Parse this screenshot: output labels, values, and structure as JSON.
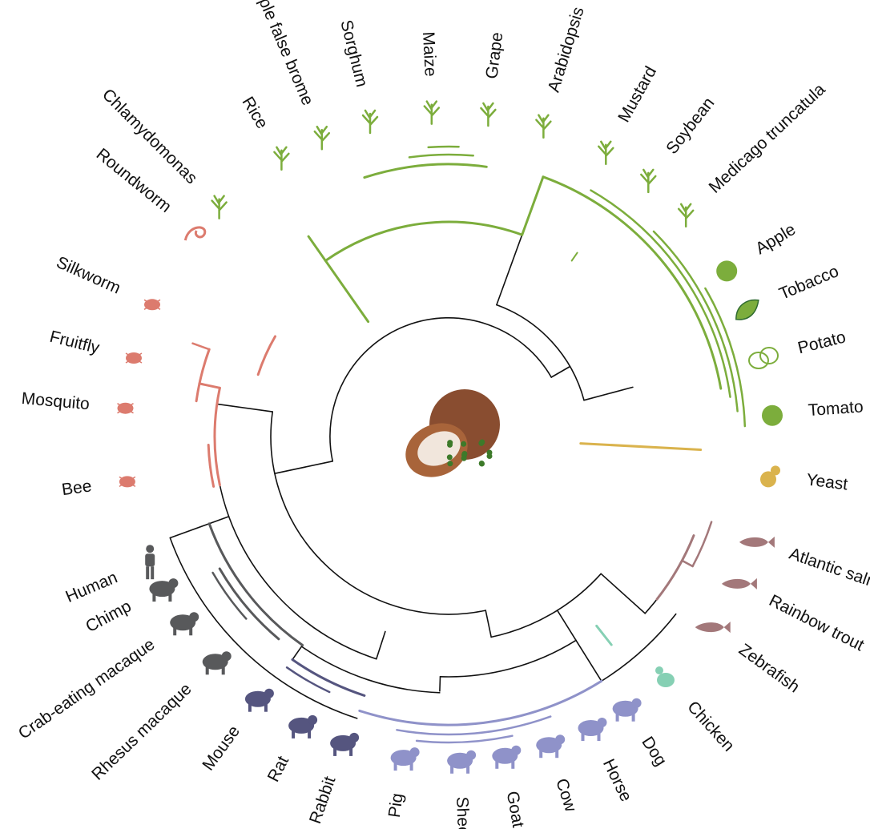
{
  "colors": {
    "plants": "#7cad3c",
    "insects": "#dc7b6e",
    "primates": "#58595b",
    "rodents": "#55557f",
    "ungulates": "#8f92c9",
    "chicken": "#86d0b4",
    "fish": "#a3787a",
    "yeast": "#dab34d",
    "backbone": "#111111",
    "center_cocoa": "#7c3a1a",
    "center_green": "#3d7a2a"
  },
  "taxa": [
    {
      "label": "Chlamydomonas",
      "group": "plants",
      "icon": "chlamydomonas-icon"
    },
    {
      "label": "Rice",
      "group": "plants",
      "icon": "rice-icon"
    },
    {
      "label": "Purple false brome",
      "group": "plants",
      "icon": "grass-icon"
    },
    {
      "label": "Sorghum",
      "group": "plants",
      "icon": "sorghum-icon"
    },
    {
      "label": "Maize",
      "group": "plants",
      "icon": "maize-icon"
    },
    {
      "label": "Grape",
      "group": "plants",
      "icon": "grape-icon"
    },
    {
      "label": "Arabidopsis",
      "group": "plants",
      "icon": "arabidopsis-icon"
    },
    {
      "label": "Mustard",
      "group": "plants",
      "icon": "mustard-icon"
    },
    {
      "label": "Soybean",
      "group": "plants",
      "icon": "soybean-icon"
    },
    {
      "label": "Medicago truncatula",
      "group": "plants",
      "icon": "medicago-icon"
    },
    {
      "label": "Apple",
      "group": "plants",
      "icon": "apple-icon"
    },
    {
      "label": "Tobacco",
      "group": "plants",
      "icon": "tobacco-leaf-icon"
    },
    {
      "label": "Potato",
      "group": "plants",
      "icon": "potato-icon"
    },
    {
      "label": "Tomato",
      "group": "plants",
      "icon": "tomato-icon"
    },
    {
      "label": "Yeast",
      "group": "yeast",
      "icon": "yeast-icon"
    },
    {
      "label": "Atlantic salmon",
      "group": "fish",
      "icon": "salmon-icon"
    },
    {
      "label": "Rainbow trout",
      "group": "fish",
      "icon": "trout-icon"
    },
    {
      "label": "Zebrafish",
      "group": "fish",
      "icon": "zebrafish-icon"
    },
    {
      "label": "Chicken",
      "group": "chicken",
      "icon": "chicken-icon"
    },
    {
      "label": "Dog",
      "group": "ungulates",
      "icon": "dog-icon"
    },
    {
      "label": "Horse",
      "group": "ungulates",
      "icon": "horse-icon"
    },
    {
      "label": "Cow",
      "group": "ungulates",
      "icon": "cow-icon"
    },
    {
      "label": "Goat",
      "group": "ungulates",
      "icon": "goat-icon"
    },
    {
      "label": "Sheep",
      "group": "ungulates",
      "icon": "sheep-icon"
    },
    {
      "label": "Pig",
      "group": "ungulates",
      "icon": "pig-icon"
    },
    {
      "label": "Rabbit",
      "group": "rodents",
      "icon": "rabbit-icon"
    },
    {
      "label": "Rat",
      "group": "rodents",
      "icon": "rat-icon"
    },
    {
      "label": "Mouse",
      "group": "rodents",
      "icon": "mouse-icon"
    },
    {
      "label": "Rhesus macaque",
      "group": "primates",
      "icon": "rhesus-macaque-icon"
    },
    {
      "label": "Crab-eating macaque",
      "group": "primates",
      "icon": "crab-eating-macaque-icon"
    },
    {
      "label": "Chimp",
      "group": "primates",
      "icon": "chimp-icon"
    },
    {
      "label": "Human",
      "group": "primates",
      "icon": "human-icon"
    },
    {
      "label": "Bee",
      "group": "insects",
      "icon": "bee-icon"
    },
    {
      "label": "Mosquito",
      "group": "insects",
      "icon": "mosquito-icon"
    },
    {
      "label": "Fruitfly",
      "group": "insects",
      "icon": "fruitfly-icon"
    },
    {
      "label": "Silkworm",
      "group": "insects",
      "icon": "silkworm-icon"
    },
    {
      "label": "Roundworm",
      "group": "insects",
      "icon": "roundworm-icon"
    }
  ],
  "center_icon": "cocoa-pod-icon"
}
